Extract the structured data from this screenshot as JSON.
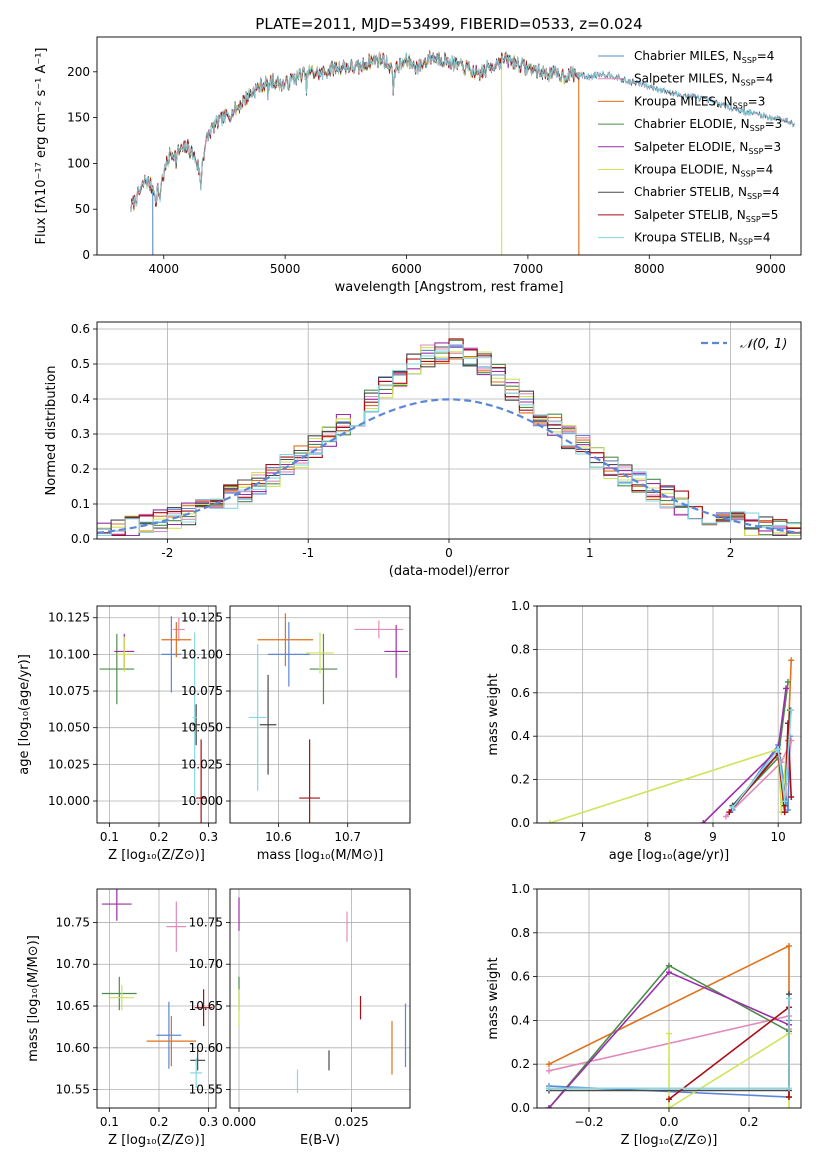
{
  "title": "PLATE=2011, MJD=53499, FIBERID=0533, z=0.024",
  "series_styles": [
    {
      "name": "Chabrier MILES",
      "nssp": "4",
      "color": "#5b88d6"
    },
    {
      "name": "Salpeter MILES",
      "nssp": "4",
      "color": "#e08bb9"
    },
    {
      "name": "Kroupa MILES",
      "nssp": "3",
      "color": "#e0711e"
    },
    {
      "name": "Chabrier ELODIE",
      "nssp": "3",
      "color": "#4e8c4e"
    },
    {
      "name": "Salpeter ELODIE",
      "nssp": "3",
      "color": "#9b2fa8"
    },
    {
      "name": "Kroupa ELODIE",
      "nssp": "4",
      "color": "#d0e35a"
    },
    {
      "name": "Chabrier STELIB",
      "nssp": "4",
      "color": "#4a4a4a"
    },
    {
      "name": "Salpeter STELIB",
      "nssp": "5",
      "color": "#a80f14"
    },
    {
      "name": "Kroupa STELIB",
      "nssp": "4",
      "color": "#86d8e2"
    }
  ],
  "chart_data": [
    {
      "id": "spectrum",
      "type": "line",
      "xlabel": "wavelength [Angstrom, rest frame]",
      "ylabel": "Flux [fλ10⁻¹⁷ erg cm⁻² s⁻¹ A⁻¹]",
      "xlim": [
        3450,
        9250
      ],
      "ylim": [
        0,
        238
      ],
      "xticks": [
        4000,
        5000,
        6000,
        7000,
        8000,
        9000
      ],
      "yticks": [
        0,
        50,
        100,
        150,
        200
      ],
      "continuum": {
        "x": [
          3730,
          3800,
          3850,
          3900,
          3950,
          4000,
          4050,
          4100,
          4150,
          4200,
          4250,
          4300,
          4350,
          4400,
          4500,
          4600,
          4700,
          4800,
          4900,
          5000,
          5100,
          5200,
          5300,
          5400,
          5500,
          5600,
          5700,
          5800,
          5900,
          6000,
          6100,
          6200,
          6300,
          6400,
          6500,
          6600,
          6700,
          6800,
          6900,
          7000,
          7100,
          7200,
          7300,
          7400,
          7500,
          7600,
          7700,
          7800,
          7900,
          8000,
          8100,
          8200,
          8300,
          8400,
          8500,
          8600,
          8700,
          8800,
          8900,
          9000,
          9100,
          9200
        ],
        "y": [
          52,
          68,
          82,
          75,
          70,
          88,
          110,
          112,
          115,
          118,
          108,
          90,
          125,
          140,
          150,
          160,
          175,
          185,
          190,
          186,
          195,
          200,
          198,
          204,
          206,
          204,
          212,
          214,
          202,
          212,
          205,
          216,
          214,
          208,
          204,
          198,
          206,
          214,
          210,
          204,
          200,
          198,
          196,
          198,
          194,
          198,
          196,
          190,
          188,
          184,
          180,
          176,
          174,
          172,
          168,
          164,
          160,
          156,
          154,
          150,
          148,
          144
        ]
      },
      "dropouts": [
        {
          "x": 3910,
          "series": "Chabrier MILES"
        },
        {
          "x": 6785,
          "series": "Kroupa ELODIE"
        },
        {
          "x": 7420,
          "series": "Kroupa MILES"
        }
      ]
    },
    {
      "id": "residuals",
      "type": "bar",
      "xlabel": "(data-model)/error",
      "ylabel": "Normed distribution",
      "xlim": [
        -2.5,
        2.5
      ],
      "ylim": [
        0,
        0.62
      ],
      "xticks": [
        -2,
        -1,
        0,
        1,
        2
      ],
      "yticks": [
        0.0,
        0.1,
        0.2,
        0.3,
        0.4,
        0.5,
        0.6
      ],
      "bin_width": 0.1,
      "gaussian_label": "𝒩(0, 1)"
    },
    {
      "id": "age-vs-Z",
      "type": "scatter",
      "xlabel": "Z [log₁₀(Z/Z⊙)]",
      "ylabel": "age  [log₁₀(age/yr)]",
      "xlim": [
        0.075,
        0.315
      ],
      "ylim": [
        9.985,
        10.133
      ],
      "xticks": [
        0.1,
        0.2,
        0.3
      ],
      "yticks": [
        10.0,
        10.025,
        10.05,
        10.075,
        10.1,
        10.125
      ],
      "points": [
        {
          "x": 0.225,
          "y": 10.1,
          "xerr": 0.02,
          "yerr": 0.026
        },
        {
          "x": 0.24,
          "y": 10.117,
          "xerr": 0.012,
          "yerr": 0.008
        },
        {
          "x": 0.235,
          "y": 10.11,
          "xerr": 0.03,
          "yerr": 0.012
        },
        {
          "x": 0.115,
          "y": 10.09,
          "xerr": 0.035,
          "yerr": 0.024
        },
        {
          "x": 0.13,
          "y": 10.102,
          "xerr": 0.02,
          "yerr": 0.012
        },
        {
          "x": 0.13,
          "y": 10.1,
          "xerr": 0.015,
          "yerr": 0.012
        },
        {
          "x": 0.275,
          "y": 10.052,
          "xerr": 0.008,
          "yerr": 0.014
        },
        {
          "x": 0.285,
          "y": 10.002,
          "xerr": 0.01,
          "yerr": 0.04
        },
        {
          "x": 0.272,
          "y": 10.057,
          "xerr": 0.004,
          "yerr": 0.058
        }
      ]
    },
    {
      "id": "age-vs-mass",
      "type": "scatter",
      "xlabel": "mass [log₁₀(M/M⊙)]",
      "xlim": [
        10.53,
        10.79
      ],
      "ylim": [
        9.985,
        10.133
      ],
      "xticks": [
        10.6,
        10.7
      ],
      "yticks": [
        10.0,
        10.025,
        10.05,
        10.075,
        10.1,
        10.125
      ],
      "points": [
        {
          "x": 10.615,
          "y": 10.1,
          "xerr": 0.03,
          "yerr": 0.022
        },
        {
          "x": 10.745,
          "y": 10.117,
          "xerr": 0.035,
          "yerr": 0.006
        },
        {
          "x": 10.61,
          "y": 10.11,
          "xerr": 0.04,
          "yerr": 0.018
        },
        {
          "x": 10.665,
          "y": 10.09,
          "xerr": 0.02,
          "yerr": 0.024
        },
        {
          "x": 10.77,
          "y": 10.102,
          "xerr": 0.017,
          "yerr": 0.018
        },
        {
          "x": 10.66,
          "y": 10.101,
          "xerr": 0.02,
          "yerr": 0.014
        },
        {
          "x": 10.585,
          "y": 10.052,
          "xerr": 0.012,
          "yerr": 0.034
        },
        {
          "x": 10.645,
          "y": 10.002,
          "xerr": 0.015,
          "yerr": 0.04
        },
        {
          "x": 10.57,
          "y": 10.057,
          "xerr": 0.013,
          "yerr": 0.05
        }
      ]
    },
    {
      "id": "weight-vs-age",
      "type": "line",
      "xlabel": "age  [log₁₀(age/yr)]",
      "ylabel": "mass weight",
      "xlim": [
        6.3,
        10.35
      ],
      "ylim": [
        0,
        1.0
      ],
      "xticks": [
        7,
        8,
        9,
        10
      ],
      "yticks": [
        0.0,
        0.2,
        0.4,
        0.6,
        0.8,
        1.0
      ],
      "series": [
        {
          "x": [
            9.3,
            10.0,
            10.15,
            10.18
          ],
          "y": [
            0.06,
            0.36,
            0.06,
            0.4
          ]
        },
        {
          "x": [
            9.2,
            10.05,
            10.2,
            10.12
          ],
          "y": [
            0.03,
            0.28,
            0.38,
            0.18
          ]
        },
        {
          "x": [
            10.1,
            10.15,
            10.2
          ],
          "y": [
            0.05,
            0.38,
            0.75
          ]
        },
        {
          "x": [
            9.3,
            10.0,
            10.15
          ],
          "y": [
            0.08,
            0.3,
            0.65
          ]
        },
        {
          "x": [
            8.85,
            10.0,
            10.12
          ],
          "y": [
            0.0,
            0.34,
            0.62
          ]
        },
        {
          "x": [
            6.5,
            10.0,
            10.05,
            10.12
          ],
          "y": [
            0.0,
            0.34,
            0.05,
            0.3
          ]
        },
        {
          "x": [
            9.3,
            10.0,
            10.1,
            10.18
          ],
          "y": [
            0.08,
            0.32,
            0.08,
            0.52
          ]
        },
        {
          "x": [
            9.25,
            10.0,
            10.1,
            10.15,
            10.2
          ],
          "y": [
            0.05,
            0.32,
            0.05,
            0.46,
            0.12
          ]
        },
        {
          "x": [
            9.3,
            10.0,
            10.1,
            10.2
          ],
          "y": [
            0.07,
            0.34,
            0.1,
            0.52
          ]
        }
      ]
    },
    {
      "id": "mass-vs-Z",
      "type": "scatter",
      "xlabel": "Z [log₁₀(Z/Z⊙)]",
      "ylabel": "mass [log₁₀(M/M⊙)]",
      "xlim": [
        0.075,
        0.315
      ],
      "ylim": [
        10.528,
        10.79
      ],
      "xticks": [
        0.1,
        0.2,
        0.3
      ],
      "yticks": [
        10.55,
        10.6,
        10.65,
        10.7,
        10.75
      ],
      "points": [
        {
          "x": 0.22,
          "y": 10.615,
          "xerr": 0.025,
          "yerr": 0.04
        },
        {
          "x": 0.235,
          "y": 10.745,
          "xerr": 0.02,
          "yerr": 0.03
        },
        {
          "x": 0.225,
          "y": 10.608,
          "xerr": 0.05,
          "yerr": 0.03
        },
        {
          "x": 0.12,
          "y": 10.665,
          "xerr": 0.035,
          "yerr": 0.02
        },
        {
          "x": 0.115,
          "y": 10.772,
          "xerr": 0.03,
          "yerr": 0.02
        },
        {
          "x": 0.125,
          "y": 10.66,
          "xerr": 0.025,
          "yerr": 0.015
        },
        {
          "x": 0.278,
          "y": 10.585,
          "xerr": 0.015,
          "yerr": 0.012
        },
        {
          "x": 0.29,
          "y": 10.648,
          "xerr": 0.018,
          "yerr": 0.022
        },
        {
          "x": 0.275,
          "y": 10.57,
          "xerr": 0.012,
          "yerr": 0.018
        }
      ]
    },
    {
      "id": "mass-vs-ebv",
      "type": "scatter",
      "xlabel": "E(B-V)",
      "xlim": [
        -0.002,
        0.038
      ],
      "ylim": [
        10.528,
        10.79
      ],
      "xticks": [
        0.0,
        0.025
      ],
      "xticklabels": [
        "0.000",
        "0.025"
      ],
      "yticks": [
        10.55,
        10.6,
        10.65,
        10.7,
        10.75
      ],
      "points": [
        {
          "x": 0.037,
          "y": 10.615,
          "xerr": 0,
          "yerr": 0.038
        },
        {
          "x": 0.024,
          "y": 10.745,
          "xerr": 0,
          "yerr": 0.018
        },
        {
          "x": 0.034,
          "y": 10.6,
          "xerr": 0,
          "yerr": 0.032
        },
        {
          "x": 0.0,
          "y": 10.665,
          "xerr": 0,
          "yerr": 0.02
        },
        {
          "x": 0.0,
          "y": 10.76,
          "xerr": 0,
          "yerr": 0.02
        },
        {
          "x": 0.0,
          "y": 10.648,
          "xerr": 0,
          "yerr": 0.022
        },
        {
          "x": 0.02,
          "y": 10.585,
          "xerr": 0,
          "yerr": 0.012
        },
        {
          "x": 0.027,
          "y": 10.648,
          "xerr": 0,
          "yerr": 0.014
        },
        {
          "x": 0.013,
          "y": 10.56,
          "xerr": 0,
          "yerr": 0.014
        }
      ]
    },
    {
      "id": "weight-vs-Z",
      "type": "line",
      "xlabel": "Z [log₁₀(Z/Z⊙)]",
      "ylabel": "mass weight",
      "xlim": [
        -0.33,
        0.33
      ],
      "ylim": [
        0,
        1.0
      ],
      "xticks": [
        -0.2,
        0.0,
        0.2
      ],
      "xticklabels": [
        "−0.2",
        "0.0",
        "0.2"
      ],
      "yticks": [
        0.0,
        0.2,
        0.4,
        0.6,
        0.8,
        1.0
      ],
      "series": [
        {
          "x": [
            -0.3,
            0.3,
            0.3
          ],
          "y": [
            0.1,
            0.05,
            0.4
          ]
        },
        {
          "x": [
            -0.3,
            0.3,
            0.3
          ],
          "y": [
            0.17,
            0.42,
            0.36
          ]
        },
        {
          "x": [
            -0.3,
            0.3,
            0.3
          ],
          "y": [
            0.2,
            0.74,
            0.05
          ]
        },
        {
          "x": [
            -0.3,
            0.0,
            0.3
          ],
          "y": [
            0.0,
            0.65,
            0.35
          ]
        },
        {
          "x": [
            -0.3,
            0.0,
            0.3
          ],
          "y": [
            0.0,
            0.62,
            0.38
          ]
        },
        {
          "x": [
            0.0,
            0.0,
            0.3,
            0.3
          ],
          "y": [
            0.34,
            0.0,
            0.34,
            0.0
          ]
        },
        {
          "x": [
            -0.3,
            0.3,
            0.3
          ],
          "y": [
            0.08,
            0.08,
            0.52
          ]
        },
        {
          "x": [
            0.0,
            0.3,
            0.3
          ],
          "y": [
            0.04,
            0.46,
            0.05
          ]
        },
        {
          "x": [
            -0.3,
            0.3,
            0.3
          ],
          "y": [
            0.09,
            0.09,
            0.5
          ]
        }
      ]
    }
  ]
}
